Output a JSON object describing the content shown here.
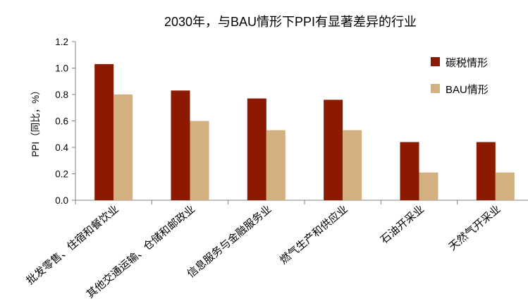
{
  "chart_data": {
    "type": "bar",
    "title": "2030年，与BAU情形下PPI有显著差异的行业",
    "xlabel": "",
    "ylabel": "PPI（同比，%）",
    "ylim": [
      0,
      1.2
    ],
    "yticks": [
      "0.0",
      "0.2",
      "0.4",
      "0.6",
      "0.8",
      "1.0",
      "1.2"
    ],
    "grid": false,
    "legend_position": "right",
    "categories": [
      "批发零售、住宿和餐饮业",
      "其他交通运输、仓储和邮政业",
      "信息服务与金融服务业",
      "燃气生产和供应业",
      "石油开采业",
      "天然气开采业"
    ],
    "series": [
      {
        "name": "碳税情形",
        "color": "#8B1A00",
        "values": [
          1.03,
          0.83,
          0.77,
          0.76,
          0.44,
          0.44
        ]
      },
      {
        "name": "BAU情形",
        "color": "#D2B07F",
        "values": [
          0.8,
          0.6,
          0.53,
          0.53,
          0.21,
          0.21
        ]
      }
    ]
  }
}
